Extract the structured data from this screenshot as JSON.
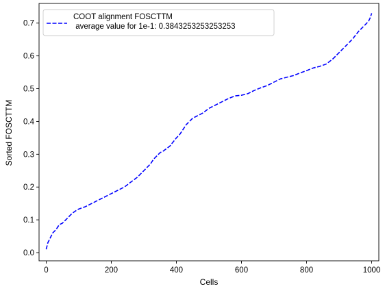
{
  "chart_data": {
    "type": "line",
    "xlabel": "Cells",
    "ylabel": "Sorted FOSCTTM",
    "xlim": [
      -22,
      1022
    ],
    "ylim": [
      -0.025,
      0.76
    ],
    "x_ticks": [
      0,
      200,
      400,
      600,
      800,
      1000
    ],
    "y_ticks": [
      0.0,
      0.1,
      0.2,
      0.3,
      0.4,
      0.5,
      0.6,
      0.7
    ],
    "x_tick_labels": [
      "0",
      "200",
      "400",
      "600",
      "800",
      "1000"
    ],
    "y_tick_labels": [
      "0.0",
      "0.1",
      "0.2",
      "0.3",
      "0.4",
      "0.5",
      "0.6",
      "0.7"
    ],
    "grid": false,
    "legend_position": "upper-left",
    "series": [
      {
        "name": "COOT alignment FOSCTTM\n average value for 1e-1: 0.3843253253253253",
        "color": "#0000ff",
        "line_style": "dashed",
        "x": [
          0,
          5,
          10,
          20,
          30,
          40,
          50,
          60,
          70,
          80,
          90,
          100,
          120,
          140,
          160,
          180,
          200,
          220,
          240,
          260,
          280,
          300,
          320,
          330,
          340,
          350,
          360,
          380,
          400,
          410,
          420,
          430,
          440,
          450,
          460,
          480,
          500,
          520,
          540,
          560,
          580,
          600,
          620,
          640,
          660,
          680,
          700,
          720,
          740,
          760,
          780,
          800,
          820,
          840,
          860,
          880,
          900,
          920,
          940,
          960,
          980,
          990,
          995,
          1000
        ],
        "y": [
          0.01,
          0.03,
          0.04,
          0.06,
          0.07,
          0.085,
          0.09,
          0.1,
          0.11,
          0.12,
          0.127,
          0.133,
          0.14,
          0.15,
          0.16,
          0.17,
          0.18,
          0.19,
          0.2,
          0.215,
          0.23,
          0.25,
          0.27,
          0.285,
          0.295,
          0.305,
          0.31,
          0.325,
          0.35,
          0.36,
          0.375,
          0.39,
          0.4,
          0.41,
          0.415,
          0.425,
          0.44,
          0.45,
          0.46,
          0.47,
          0.478,
          0.48,
          0.485,
          0.495,
          0.503,
          0.51,
          0.52,
          0.53,
          0.535,
          0.54,
          0.548,
          0.555,
          0.563,
          0.568,
          0.575,
          0.59,
          0.61,
          0.63,
          0.65,
          0.675,
          0.695,
          0.705,
          0.715,
          0.73
        ]
      }
    ]
  }
}
